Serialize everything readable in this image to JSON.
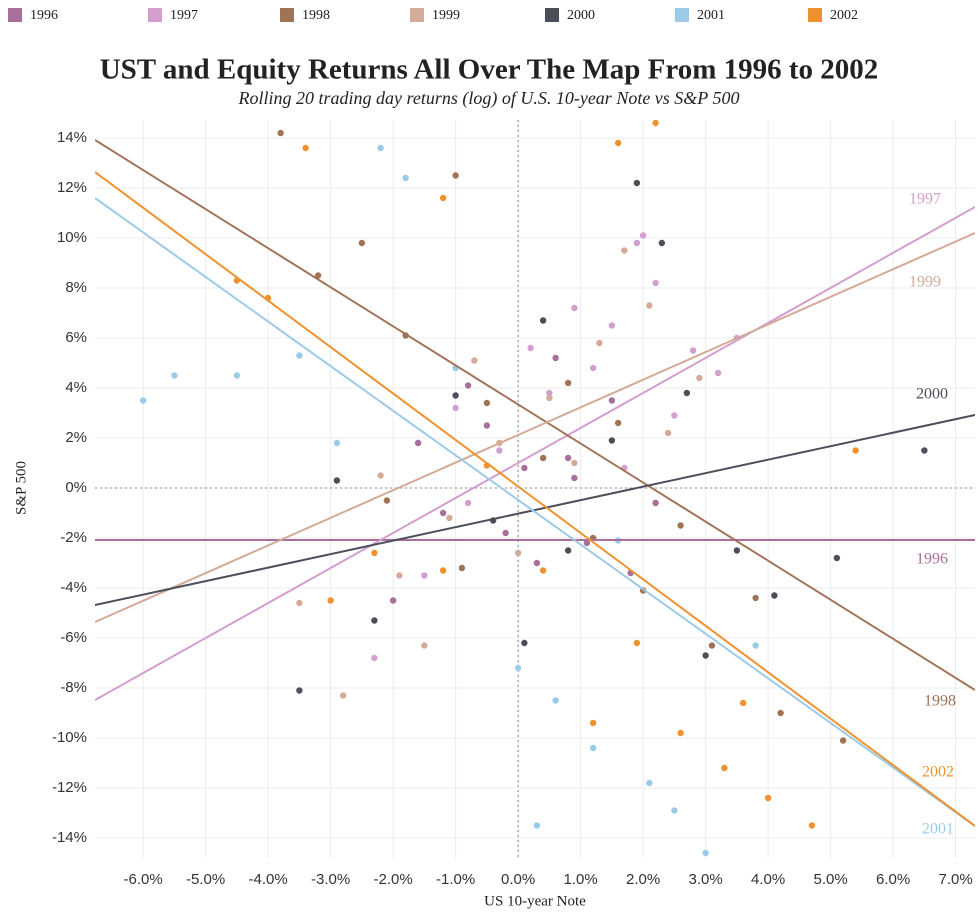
{
  "chart_data": {
    "type": "scatter",
    "title": "UST and Equity Returns All Over The Map From 1996 to 2002",
    "subtitle": "Rolling 20 trading day returns (log) of U.S. 10-year Note vs S&P 500",
    "x_label": "US 10-year Note",
    "y_label": "S&P 500",
    "xlim": [
      -6.77,
      7.31
    ],
    "ylim": [
      -14.8,
      14.72
    ],
    "xticks": [
      {
        "value": -6,
        "label": "-6.0%"
      },
      {
        "value": -5,
        "label": "-5.0%"
      },
      {
        "value": -4,
        "label": "-4.0%"
      },
      {
        "value": -3,
        "label": "-3.0%"
      },
      {
        "value": -2,
        "label": "-2.0%"
      },
      {
        "value": -1,
        "label": "-1.0%"
      },
      {
        "value": 0,
        "label": "0.0%"
      },
      {
        "value": 1,
        "label": "1.0%"
      },
      {
        "value": 2,
        "label": "2.0%"
      },
      {
        "value": 3,
        "label": "3.0%"
      },
      {
        "value": 4,
        "label": "4.0%"
      },
      {
        "value": 5,
        "label": "5.0%"
      },
      {
        "value": 6,
        "label": "6.0%"
      },
      {
        "value": 7,
        "label": "7.0%"
      }
    ],
    "yticks": [
      {
        "value": -14,
        "label": "-14%"
      },
      {
        "value": -12,
        "label": "-12%"
      },
      {
        "value": -10,
        "label": "-10%"
      },
      {
        "value": -8,
        "label": "-8%"
      },
      {
        "value": -6,
        "label": "-6%"
      },
      {
        "value": -4,
        "label": "-4%"
      },
      {
        "value": -2,
        "label": "-2%"
      },
      {
        "value": 0,
        "label": "0%"
      },
      {
        "value": 2,
        "label": "2%"
      },
      {
        "value": 4,
        "label": "4%"
      },
      {
        "value": 6,
        "label": "6%"
      },
      {
        "value": 8,
        "label": "8%"
      },
      {
        "value": 10,
        "label": "10%"
      },
      {
        "value": 12,
        "label": "12%"
      },
      {
        "value": 14,
        "label": "14%"
      }
    ],
    "grid": true,
    "legend": "top",
    "series": [
      {
        "name": "1996",
        "color": "#a86f9b",
        "x": [
          -1.2,
          -0.5,
          0.3,
          0.8,
          1.5,
          -2.0,
          0.1,
          1.1,
          -0.8,
          2.2,
          0.6,
          -1.6,
          1.8,
          -0.2,
          0.9
        ],
        "values": [
          -1,
          2.5,
          -3,
          1.2,
          3.5,
          -4.5,
          0.8,
          -2.2,
          4.1,
          -0.6,
          5.2,
          1.8,
          -3.4,
          -1.8,
          0.4
        ],
        "fit": {
          "x": [
            -6.77,
            7.31
          ],
          "values": [
            -2.08,
            -2.08
          ]
        }
      },
      {
        "name": "1997",
        "color": "#d39fcd",
        "x": [
          1.5,
          2.2,
          2.8,
          0.5,
          -0.3,
          1.9,
          3.2,
          -1.5,
          0.9,
          2.5,
          -0.8,
          1.2,
          3.5,
          -2.3,
          0.2,
          1.7,
          2.0,
          -1.0
        ],
        "values": [
          6.5,
          8.2,
          5.5,
          3.8,
          1.5,
          9.8,
          4.6,
          -3.5,
          7.2,
          2.9,
          -0.6,
          4.8,
          6.0,
          -6.8,
          5.6,
          0.8,
          10.1,
          3.2
        ],
        "fit": {
          "x": [
            -6.77,
            7.31
          ],
          "values": [
            -8.48,
            11.24
          ]
        }
      },
      {
        "name": "1998",
        "color": "#a07355",
        "x": [
          -3.8,
          -2.5,
          -1.8,
          -0.5,
          0.4,
          1.2,
          2.0,
          3.1,
          4.2,
          -3.2,
          -1.0,
          0.8,
          2.6,
          5.2,
          -2.1,
          1.6,
          -0.9,
          3.8
        ],
        "values": [
          14.2,
          9.8,
          6.1,
          3.4,
          1.2,
          -2.0,
          -4.1,
          -6.3,
          -9.0,
          8.5,
          12.5,
          4.2,
          -1.5,
          -10.1,
          -0.5,
          2.6,
          -3.2,
          -4.4
        ],
        "fit": {
          "x": [
            -6.77,
            7.31
          ],
          "values": [
            13.92,
            -8.08
          ]
        }
      },
      {
        "name": "1999",
        "color": "#d4aa98",
        "x": [
          -2.8,
          -1.9,
          -1.1,
          -0.3,
          0.5,
          1.3,
          2.1,
          2.9,
          -3.5,
          -2.2,
          0.0,
          1.7,
          -1.5,
          0.9,
          2.4,
          -0.7
        ],
        "values": [
          -8.3,
          -3.5,
          -1.2,
          1.8,
          3.6,
          5.8,
          7.3,
          4.4,
          -4.6,
          0.5,
          -2.6,
          9.5,
          -6.3,
          1.0,
          2.2,
          5.1
        ],
        "fit": {
          "x": [
            -6.77,
            7.31
          ],
          "values": [
            -5.36,
            10.2
          ]
        }
      },
      {
        "name": "2000",
        "color": "#4c4f5a",
        "x": [
          -3.5,
          -2.3,
          -1.0,
          0.1,
          0.8,
          1.5,
          2.3,
          3.0,
          4.1,
          5.1,
          -2.9,
          -0.4,
          1.9,
          3.5,
          6.5,
          2.7,
          0.4
        ],
        "values": [
          -8.1,
          -5.3,
          3.7,
          -6.2,
          -2.5,
          1.9,
          9.8,
          -6.7,
          -4.3,
          -2.8,
          0.3,
          -1.3,
          12.2,
          -2.5,
          1.5,
          3.8,
          6.7
        ],
        "fit": {
          "x": [
            -6.77,
            7.31
          ],
          "values": [
            -4.68,
            2.92
          ]
        }
      },
      {
        "name": "2001",
        "color": "#9ccbe8",
        "x": [
          -6.0,
          -5.5,
          -4.5,
          -3.5,
          -2.2,
          -1.0,
          0.0,
          0.6,
          1.2,
          2.5,
          3.0,
          3.8,
          -1.8,
          0.3,
          1.6,
          -2.9,
          2.1
        ],
        "values": [
          3.5,
          4.5,
          4.5,
          5.3,
          13.6,
          4.8,
          -7.2,
          -8.5,
          -10.4,
          -12.9,
          -14.6,
          -6.3,
          12.4,
          -13.5,
          -2.1,
          1.8,
          -11.8
        ],
        "fit": {
          "x": [
            -6.77,
            7.31
          ],
          "values": [
            11.6,
            -13.52
          ]
        }
      },
      {
        "name": "2002",
        "color": "#f0912f",
        "x": [
          -4.5,
          -4.0,
          -3.4,
          -2.3,
          -1.2,
          -0.5,
          0.4,
          1.2,
          1.9,
          2.6,
          3.3,
          4.0,
          4.7,
          5.4,
          -3.0,
          2.2,
          1.6,
          3.6,
          -1.2
        ],
        "values": [
          8.3,
          7.6,
          13.6,
          -2.6,
          11.6,
          0.9,
          -3.3,
          -9.4,
          -6.2,
          -9.8,
          -11.2,
          -12.4,
          -13.5,
          1.5,
          -4.5,
          14.6,
          13.8,
          -8.6,
          -3.3
        ],
        "fit": {
          "x": [
            -6.77,
            7.31
          ],
          "values": [
            12.64,
            -13.52
          ]
        }
      }
    ]
  }
}
